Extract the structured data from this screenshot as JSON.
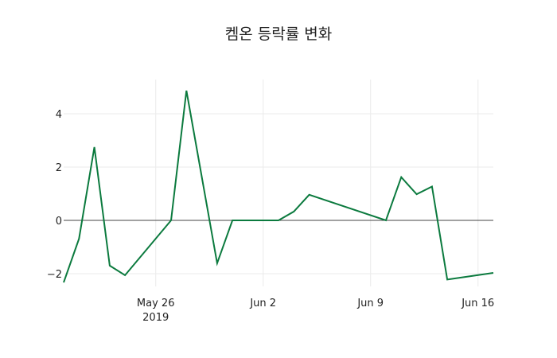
{
  "chart_data": {
    "type": "line",
    "title": "켐온 등락률 변화",
    "xlabel": "",
    "ylabel": "",
    "x": [
      "2019-05-20",
      "2019-05-21",
      "2019-05-22",
      "2019-05-23",
      "2019-05-24",
      "2019-05-27",
      "2019-05-28",
      "2019-05-30",
      "2019-05-31",
      "2019-06-03",
      "2019-06-04",
      "2019-06-05",
      "2019-06-10",
      "2019-06-11",
      "2019-06-12",
      "2019-06-13",
      "2019-06-14",
      "2019-06-17"
    ],
    "series": [
      {
        "name": "등락률",
        "color": "#0b7a3e",
        "values": [
          -2.33,
          -0.69,
          2.75,
          -1.7,
          -2.06,
          0.0,
          4.87,
          -1.61,
          0.0,
          0.0,
          0.33,
          0.96,
          0.0,
          1.62,
          0.98,
          1.27,
          -2.22,
          -1.97
        ]
      }
    ],
    "yticks": [
      -2,
      0,
      2,
      4
    ],
    "ytick_labels": [
      "−2",
      "0",
      "2",
      "4"
    ],
    "xticks": [
      "2019-05-26",
      "2019-06-02",
      "2019-06-09",
      "2019-06-16"
    ],
    "xtick_labels": [
      "May 26\n2019",
      "Jun 2",
      "Jun 9",
      "Jun 16"
    ],
    "ylim": [
      -2.5,
      5.3
    ],
    "xlim": [
      "2019-05-20",
      "2019-06-17"
    ],
    "grid": true,
    "legend": false
  }
}
